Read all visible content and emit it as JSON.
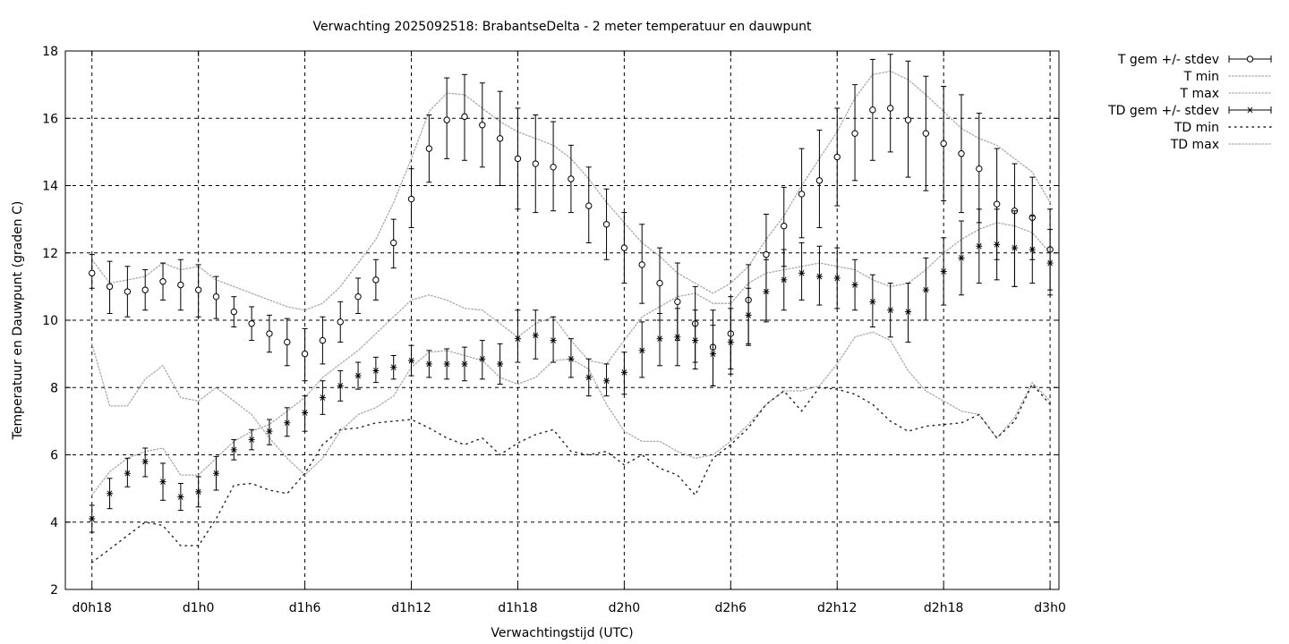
{
  "chart_data": {
    "type": "line",
    "title": "Verwachting 2025092518: BrabantseDelta - 2 meter temperatuur en dauwpunt",
    "xlabel": "Verwachtingstijd (UTC)",
    "ylabel": "Temperatuur en Dauwpunt (graden C)",
    "xlim": [
      -1.5,
      54.5
    ],
    "ylim": [
      2,
      18
    ],
    "x_unit": "hours since d0h18",
    "x_ticks": [
      {
        "x": 0,
        "label": "d0h18"
      },
      {
        "x": 6,
        "label": "d1h0"
      },
      {
        "x": 12,
        "label": "d1h6"
      },
      {
        "x": 18,
        "label": "d1h12"
      },
      {
        "x": 24,
        "label": "d1h18"
      },
      {
        "x": 30,
        "label": "d2h0"
      },
      {
        "x": 36,
        "label": "d2h6"
      },
      {
        "x": 42,
        "label": "d2h12"
      },
      {
        "x": 48,
        "label": "d2h18"
      },
      {
        "x": 54,
        "label": "d3h0"
      }
    ],
    "y_ticks": [
      2,
      4,
      6,
      8,
      10,
      12,
      14,
      16,
      18
    ],
    "grid": true,
    "legend_position": "top-right, outside plot",
    "series": [
      {
        "name": "T gem +/- stdev",
        "style": "errorbars-circle",
        "x": [
          0,
          1,
          2,
          3,
          4,
          5,
          6,
          7,
          8,
          9,
          10,
          11,
          12,
          13,
          14,
          15,
          16,
          17,
          18,
          19,
          20,
          21,
          22,
          23,
          24,
          25,
          26,
          27,
          28,
          29,
          30,
          31,
          32,
          33,
          34,
          35,
          36,
          37,
          38,
          39,
          40,
          41,
          42,
          43,
          44,
          45,
          46,
          47,
          48,
          49,
          50,
          51,
          52,
          53,
          54
        ],
        "mean": [
          11.4,
          11.0,
          10.85,
          10.9,
          11.15,
          11.05,
          10.9,
          10.7,
          10.25,
          9.9,
          9.6,
          9.35,
          9.0,
          9.4,
          9.95,
          10.7,
          11.2,
          12.3,
          13.6,
          15.1,
          15.95,
          16.05,
          15.8,
          15.4,
          14.8,
          14.65,
          14.55,
          14.2,
          13.4,
          12.85,
          12.15,
          11.65,
          11.1,
          10.55,
          9.9,
          9.2,
          9.6,
          10.6,
          11.95,
          12.8,
          13.75,
          14.15,
          14.85,
          15.55,
          16.25,
          16.3,
          15.95,
          15.55,
          15.25,
          14.95,
          14.5,
          13.45,
          13.25,
          13.05,
          12.1
        ],
        "low": [
          10.95,
          10.2,
          10.1,
          10.3,
          10.6,
          10.3,
          10.1,
          10.05,
          9.8,
          9.4,
          9.05,
          8.65,
          8.2,
          8.7,
          9.35,
          10.2,
          10.6,
          11.55,
          12.75,
          14.1,
          14.8,
          14.75,
          14.55,
          14.0,
          13.3,
          13.2,
          13.25,
          13.2,
          12.3,
          11.8,
          11.1,
          10.5,
          10.0,
          9.4,
          8.75,
          8.05,
          8.55,
          9.3,
          10.0,
          11.6,
          12.45,
          12.75,
          13.4,
          14.15,
          14.75,
          15.0,
          14.25,
          13.85,
          13.55,
          13.2,
          12.9,
          11.8,
          11.0,
          11.8,
          10.9
        ],
        "high": [
          11.95,
          11.75,
          11.6,
          11.5,
          11.7,
          11.8,
          11.65,
          11.3,
          10.7,
          10.4,
          10.15,
          10.05,
          9.75,
          10.1,
          10.55,
          11.25,
          11.8,
          13.0,
          14.5,
          16.1,
          17.2,
          17.3,
          17.05,
          16.8,
          16.3,
          16.1,
          15.9,
          15.2,
          14.55,
          13.9,
          13.2,
          12.85,
          12.15,
          11.7,
          11.0,
          10.3,
          10.7,
          11.65,
          13.15,
          13.95,
          15.1,
          15.65,
          16.3,
          17.0,
          17.75,
          17.9,
          17.7,
          17.25,
          16.95,
          16.7,
          16.15,
          15.1,
          14.65,
          14.25,
          13.3
        ]
      },
      {
        "name": "T min",
        "style": "dotted",
        "x": [
          0,
          1,
          2,
          3,
          4,
          5,
          6,
          7,
          8,
          9,
          10,
          11,
          12,
          13,
          14,
          15,
          16,
          17,
          18,
          19,
          20,
          21,
          22,
          23,
          24,
          25,
          26,
          27,
          28,
          29,
          30,
          31,
          32,
          33,
          34,
          35,
          36,
          37,
          38,
          39,
          40,
          41,
          42,
          43,
          44,
          45,
          46,
          47,
          48,
          49,
          50,
          51,
          52,
          53,
          54
        ],
        "values": [
          9.3,
          7.45,
          7.45,
          8.25,
          8.65,
          7.7,
          7.6,
          8.0,
          7.6,
          7.2,
          6.5,
          5.9,
          5.4,
          5.9,
          6.7,
          7.2,
          7.4,
          7.75,
          8.6,
          9.05,
          9.1,
          8.95,
          8.8,
          8.3,
          8.1,
          8.3,
          8.8,
          8.85,
          8.55,
          7.5,
          6.7,
          6.4,
          6.4,
          6.1,
          5.9,
          6.0,
          6.4,
          6.9,
          7.5,
          7.9,
          7.9,
          8.05,
          8.7,
          9.5,
          9.65,
          9.4,
          8.5,
          7.9,
          7.6,
          7.3,
          7.2,
          6.5,
          7.1,
          8.15,
          7.6
        ]
      },
      {
        "name": "T max",
        "style": "dotted",
        "x": [
          0,
          1,
          2,
          3,
          4,
          5,
          6,
          7,
          8,
          9,
          10,
          11,
          12,
          13,
          14,
          15,
          16,
          17,
          18,
          19,
          20,
          21,
          22,
          23,
          24,
          25,
          26,
          27,
          28,
          29,
          30,
          31,
          32,
          33,
          34,
          35,
          36,
          37,
          38,
          39,
          40,
          41,
          42,
          43,
          44,
          45,
          46,
          47,
          48,
          49,
          50,
          51,
          52,
          53,
          54
        ],
        "values": [
          11.8,
          11.1,
          11.2,
          11.3,
          11.7,
          11.5,
          11.6,
          11.2,
          11.0,
          10.8,
          10.6,
          10.4,
          10.3,
          10.5,
          11.0,
          11.7,
          12.4,
          13.5,
          14.8,
          16.2,
          16.75,
          16.7,
          16.3,
          15.9,
          15.6,
          15.4,
          15.2,
          14.8,
          14.2,
          13.5,
          12.9,
          12.3,
          11.9,
          11.4,
          11.1,
          10.8,
          11.1,
          11.6,
          12.4,
          13.1,
          14.0,
          14.8,
          15.6,
          16.6,
          17.3,
          17.4,
          17.15,
          16.7,
          16.2,
          15.7,
          15.4,
          15.2,
          14.8,
          14.4,
          13.5
        ]
      },
      {
        "name": "TD gem +/- stdev",
        "style": "errorbars-star",
        "x": [
          0,
          1,
          2,
          3,
          4,
          5,
          6,
          7,
          8,
          9,
          10,
          11,
          12,
          13,
          14,
          15,
          16,
          17,
          18,
          19,
          20,
          21,
          22,
          23,
          24,
          25,
          26,
          27,
          28,
          29,
          30,
          31,
          32,
          33,
          34,
          35,
          36,
          37,
          38,
          39,
          40,
          41,
          42,
          43,
          44,
          45,
          46,
          47,
          48,
          49,
          50,
          51,
          52,
          53,
          54
        ],
        "mean": [
          4.1,
          4.85,
          5.45,
          5.8,
          5.2,
          4.75,
          4.9,
          5.45,
          6.15,
          6.45,
          6.7,
          6.95,
          7.25,
          7.7,
          8.05,
          8.35,
          8.5,
          8.6,
          8.8,
          8.7,
          8.7,
          8.7,
          8.85,
          8.7,
          9.45,
          9.55,
          9.4,
          8.85,
          8.3,
          8.2,
          8.45,
          9.1,
          9.45,
          9.5,
          9.4,
          9.0,
          9.35,
          10.15,
          10.85,
          11.2,
          11.4,
          11.3,
          11.25,
          11.05,
          10.55,
          10.3,
          10.25,
          10.9,
          11.45,
          11.85,
          12.2,
          12.25,
          12.15,
          12.1,
          11.7
        ],
        "low": [
          3.7,
          4.4,
          5.05,
          5.35,
          4.65,
          4.35,
          4.45,
          4.95,
          5.85,
          6.15,
          6.3,
          6.55,
          6.7,
          7.2,
          7.6,
          7.95,
          8.15,
          8.25,
          8.35,
          8.3,
          8.25,
          8.2,
          8.25,
          8.1,
          8.75,
          8.85,
          8.75,
          8.3,
          7.75,
          7.75,
          7.8,
          8.3,
          8.65,
          8.65,
          8.55,
          8.05,
          8.4,
          9.25,
          9.95,
          10.3,
          10.6,
          10.45,
          10.35,
          10.3,
          9.8,
          9.5,
          9.35,
          10.0,
          10.45,
          10.75,
          11.1,
          11.2,
          11.0,
          11.1,
          10.75
        ],
        "high": [
          4.5,
          5.3,
          5.9,
          6.2,
          5.75,
          5.15,
          5.35,
          5.95,
          6.45,
          6.75,
          7.05,
          7.4,
          7.75,
          8.2,
          8.5,
          8.75,
          8.9,
          8.95,
          9.25,
          9.1,
          9.15,
          9.2,
          9.4,
          9.3,
          10.3,
          10.3,
          10.1,
          9.45,
          8.85,
          8.7,
          9.05,
          9.95,
          10.2,
          10.35,
          10.3,
          9.85,
          10.35,
          10.95,
          11.8,
          12.1,
          12.3,
          12.2,
          12.15,
          11.8,
          11.35,
          11.1,
          11.1,
          11.85,
          12.45,
          12.95,
          13.3,
          13.3,
          13.25,
          13.1,
          12.7
        ]
      },
      {
        "name": "TD min",
        "style": "dotted-sparse",
        "x": [
          0,
          1,
          2,
          3,
          4,
          5,
          6,
          7,
          8,
          9,
          10,
          11,
          12,
          13,
          14,
          15,
          16,
          17,
          18,
          19,
          20,
          21,
          22,
          23,
          24,
          25,
          26,
          27,
          28,
          29,
          30,
          31,
          32,
          33,
          34,
          35,
          36,
          37,
          38,
          39,
          40,
          41,
          42,
          43,
          44,
          45,
          46,
          47,
          48,
          49,
          50,
          51,
          52,
          53,
          54
        ],
        "values": [
          2.8,
          3.2,
          3.6,
          4.0,
          3.9,
          3.3,
          3.3,
          4.1,
          5.1,
          5.15,
          4.95,
          4.85,
          5.45,
          6.3,
          6.75,
          6.8,
          6.95,
          7.0,
          7.05,
          6.8,
          6.5,
          6.3,
          6.5,
          6.0,
          6.35,
          6.6,
          6.75,
          6.1,
          6.0,
          6.1,
          5.7,
          6.0,
          5.6,
          5.4,
          4.8,
          5.9,
          6.3,
          6.8,
          7.5,
          7.9,
          7.3,
          8.0,
          7.95,
          7.8,
          7.5,
          7.0,
          6.7,
          6.85,
          6.9,
          6.95,
          7.2,
          6.5,
          7.0,
          8.1,
          7.5
        ]
      },
      {
        "name": "TD max",
        "style": "dotted",
        "x": [
          0,
          1,
          2,
          3,
          4,
          5,
          6,
          7,
          8,
          9,
          10,
          11,
          12,
          13,
          14,
          15,
          16,
          17,
          18,
          19,
          20,
          21,
          22,
          23,
          24,
          25,
          26,
          27,
          28,
          29,
          30,
          31,
          32,
          33,
          34,
          35,
          36,
          37,
          38,
          39,
          40,
          41,
          42,
          43,
          44,
          45,
          46,
          47,
          48,
          49,
          50,
          51,
          52,
          53,
          54
        ],
        "values": [
          4.8,
          5.5,
          5.9,
          6.1,
          6.2,
          5.4,
          5.4,
          5.9,
          6.4,
          6.7,
          6.9,
          7.3,
          7.7,
          8.3,
          8.7,
          9.1,
          9.6,
          10.1,
          10.6,
          10.75,
          10.6,
          10.35,
          10.3,
          9.9,
          9.5,
          9.9,
          10.1,
          9.4,
          8.8,
          8.7,
          9.4,
          10.1,
          10.4,
          10.7,
          10.8,
          10.5,
          10.5,
          11.1,
          11.4,
          11.5,
          11.6,
          11.7,
          11.6,
          11.5,
          11.2,
          11.0,
          11.1,
          11.5,
          12.0,
          12.4,
          12.7,
          12.9,
          12.8,
          12.6,
          12.0
        ]
      }
    ]
  }
}
